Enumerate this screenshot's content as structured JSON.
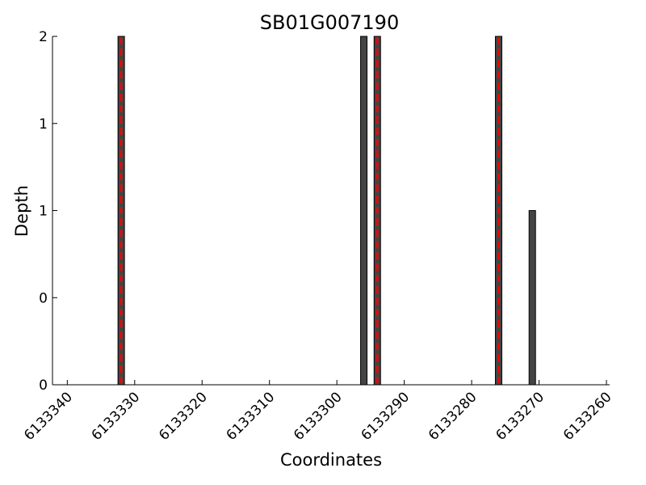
{
  "chart_data": {
    "type": "bar",
    "title": "SB01G007190",
    "xlabel": "Coordinates",
    "ylabel": "Depth",
    "x_axis_reversed": true,
    "xlim": [
      6133341,
      6133260
    ],
    "ylim": [
      0,
      2
    ],
    "xticks": [
      6133340,
      6133330,
      6133320,
      6133310,
      6133300,
      6133290,
      6133280,
      6133270,
      6133260
    ],
    "xtick_labels": [
      "6133340",
      "6133330",
      "6133320",
      "6133310",
      "6133300",
      "6133290",
      "6133280",
      "6133270",
      "6133260"
    ],
    "yticks": [
      0,
      0.5,
      1,
      1.5,
      2
    ],
    "ytick_labels": [
      "0",
      "0",
      "1",
      "1",
      "2"
    ],
    "grid": false,
    "bar_color": "#444444",
    "marker_color": "#ff0000",
    "bars": [
      {
        "x": 6133332,
        "depth": 2,
        "marked": true
      },
      {
        "x": 6133296,
        "depth": 2,
        "marked": false
      },
      {
        "x": 6133294,
        "depth": 2,
        "marked": true
      },
      {
        "x": 6133276,
        "depth": 2,
        "marked": true
      },
      {
        "x": 6133271,
        "depth": 1,
        "marked": false
      }
    ]
  }
}
